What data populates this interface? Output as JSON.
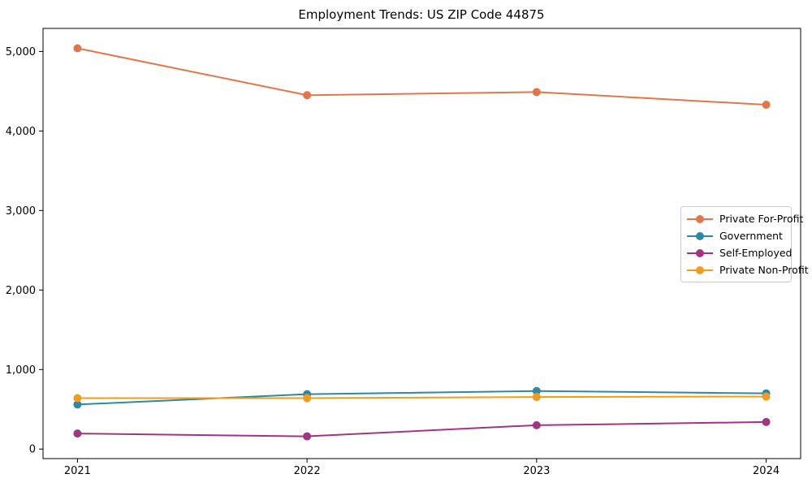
{
  "chart_data": {
    "type": "line",
    "title": "Employment Trends: US ZIP Code 44875",
    "x": [
      2021,
      2022,
      2023,
      2024
    ],
    "x_tick_labels": [
      "2021",
      "2022",
      "2023",
      "2024"
    ],
    "series": [
      {
        "name": "Private For-Profit",
        "color": "#e2764b",
        "values": [
          5040,
          4450,
          4490,
          4330
        ]
      },
      {
        "name": "Government",
        "color": "#2e87a5",
        "values": [
          560,
          690,
          730,
          700
        ]
      },
      {
        "name": "Self-Employed",
        "color": "#a23580",
        "values": [
          195,
          160,
          300,
          340
        ]
      },
      {
        "name": "Private Non-Profit",
        "color": "#ee9d20",
        "values": [
          640,
          640,
          655,
          660
        ]
      }
    ],
    "yticks": [
      0,
      1000,
      2000,
      3000,
      4000,
      5000
    ],
    "ytick_labels": [
      "0",
      "1,000",
      "2,000",
      "3,000",
      "4,000",
      "5,000"
    ],
    "xlim": [
      2020.85,
      2024.15
    ],
    "ylim": [
      -120,
      5290
    ],
    "grid": false,
    "legend_position": "center-right",
    "marker": "circle",
    "line_width": 2,
    "marker_radius": 5,
    "axis_color": "#000000",
    "background_color": "#ffffff"
  }
}
